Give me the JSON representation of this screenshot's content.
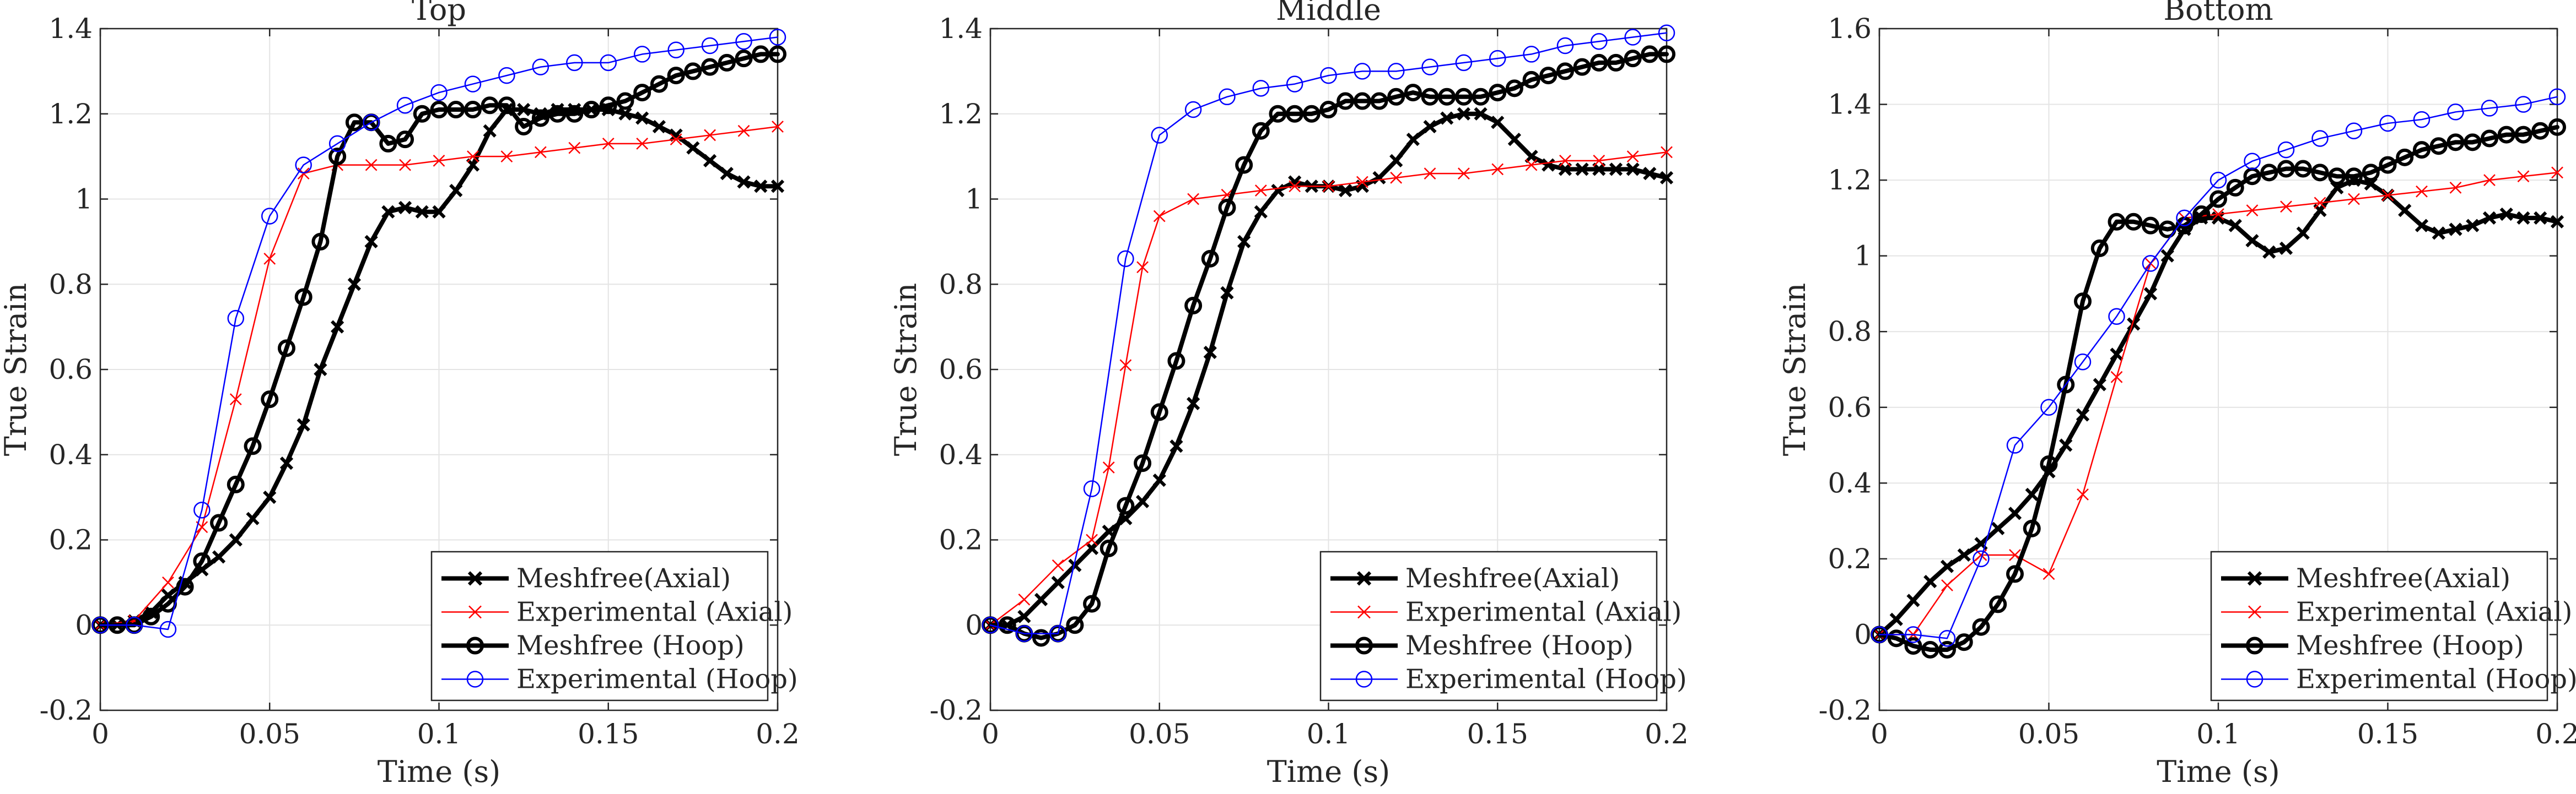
{
  "chart_data": [
    {
      "type": "line",
      "title": "Top",
      "xlabel": "Time (s)",
      "ylabel": "True Strain",
      "xlim": [
        0,
        0.2
      ],
      "ylim": [
        -0.2,
        1.4
      ],
      "xticks": [
        0,
        0.05,
        0.1,
        0.15,
        0.2
      ],
      "xtick_labels": [
        "0",
        "0.05",
        "0.1",
        "0.15",
        "0.2"
      ],
      "yticks": [
        -0.2,
        0,
        0.2,
        0.4,
        0.6,
        0.8,
        1,
        1.2,
        1.4
      ],
      "ytick_labels": [
        "-0.2",
        "0",
        "0.2",
        "0.4",
        "0.6",
        "0.8",
        "1",
        "1.2",
        "1.4"
      ],
      "grid": true,
      "legend_position": "bottom-right",
      "series": [
        {
          "name": "Meshfree(Axial)",
          "color": "#000000",
          "marker": "x",
          "x": [
            0,
            0.005,
            0.01,
            0.015,
            0.02,
            0.025,
            0.03,
            0.035,
            0.04,
            0.045,
            0.05,
            0.055,
            0.06,
            0.065,
            0.07,
            0.075,
            0.08,
            0.085,
            0.09,
            0.095,
            0.1,
            0.105,
            0.11,
            0.115,
            0.12,
            0.125,
            0.13,
            0.135,
            0.14,
            0.145,
            0.15,
            0.155,
            0.16,
            0.165,
            0.17,
            0.175,
            0.18,
            0.185,
            0.19,
            0.195,
            0.2
          ],
          "y": [
            0,
            0,
            0.01,
            0.03,
            0.07,
            0.1,
            0.13,
            0.16,
            0.2,
            0.25,
            0.3,
            0.38,
            0.47,
            0.6,
            0.7,
            0.8,
            0.9,
            0.97,
            0.98,
            0.97,
            0.97,
            1.02,
            1.08,
            1.16,
            1.21,
            1.21,
            1.2,
            1.21,
            1.21,
            1.21,
            1.21,
            1.2,
            1.19,
            1.17,
            1.15,
            1.12,
            1.09,
            1.06,
            1.04,
            1.03,
            1.03
          ]
        },
        {
          "name": "Experimental (Axial)",
          "color": "#ff0000",
          "marker": "x",
          "x": [
            0,
            0.01,
            0.02,
            0.03,
            0.04,
            0.05,
            0.06,
            0.07,
            0.08,
            0.09,
            0.1,
            0.11,
            0.12,
            0.13,
            0.14,
            0.15,
            0.16,
            0.17,
            0.18,
            0.19,
            0.2
          ],
          "y": [
            0,
            0.01,
            0.1,
            0.23,
            0.53,
            0.86,
            1.06,
            1.08,
            1.08,
            1.08,
            1.09,
            1.1,
            1.1,
            1.11,
            1.12,
            1.13,
            1.13,
            1.14,
            1.15,
            1.16,
            1.17
          ]
        },
        {
          "name": "Meshfree (Hoop)",
          "color": "#000000",
          "marker": "o",
          "x": [
            0,
            0.005,
            0.01,
            0.015,
            0.02,
            0.025,
            0.03,
            0.035,
            0.04,
            0.045,
            0.05,
            0.055,
            0.06,
            0.065,
            0.07,
            0.075,
            0.08,
            0.085,
            0.09,
            0.095,
            0.1,
            0.105,
            0.11,
            0.115,
            0.12,
            0.125,
            0.13,
            0.135,
            0.14,
            0.145,
            0.15,
            0.155,
            0.16,
            0.165,
            0.17,
            0.175,
            0.18,
            0.185,
            0.19,
            0.195,
            0.2
          ],
          "y": [
            0,
            0,
            0,
            0.02,
            0.05,
            0.09,
            0.15,
            0.24,
            0.33,
            0.42,
            0.53,
            0.65,
            0.77,
            0.9,
            1.1,
            1.18,
            1.18,
            1.13,
            1.14,
            1.2,
            1.21,
            1.21,
            1.21,
            1.22,
            1.22,
            1.17,
            1.19,
            1.2,
            1.2,
            1.21,
            1.22,
            1.23,
            1.25,
            1.27,
            1.29,
            1.3,
            1.31,
            1.32,
            1.33,
            1.34,
            1.34
          ]
        },
        {
          "name": "Experimental (Hoop)",
          "color": "#0000ff",
          "marker": "o",
          "x": [
            0,
            0.01,
            0.02,
            0.03,
            0.04,
            0.05,
            0.06,
            0.07,
            0.08,
            0.09,
            0.1,
            0.11,
            0.12,
            0.13,
            0.14,
            0.15,
            0.16,
            0.17,
            0.18,
            0.19,
            0.2
          ],
          "y": [
            0,
            0,
            -0.01,
            0.27,
            0.72,
            0.96,
            1.08,
            1.13,
            1.18,
            1.22,
            1.25,
            1.27,
            1.29,
            1.31,
            1.32,
            1.32,
            1.34,
            1.35,
            1.36,
            1.37,
            1.38
          ]
        }
      ]
    },
    {
      "type": "line",
      "title": "Middle",
      "xlabel": "Time (s)",
      "ylabel": "True Strain",
      "xlim": [
        0,
        0.2
      ],
      "ylim": [
        -0.2,
        1.4
      ],
      "xticks": [
        0,
        0.05,
        0.1,
        0.15,
        0.2
      ],
      "xtick_labels": [
        "0",
        "0.05",
        "0.1",
        "0.15",
        "0.2"
      ],
      "yticks": [
        -0.2,
        0,
        0.2,
        0.4,
        0.6,
        0.8,
        1,
        1.2,
        1.4
      ],
      "ytick_labels": [
        "-0.2",
        "0",
        "0.2",
        "0.4",
        "0.6",
        "0.8",
        "1",
        "1.2",
        "1.4"
      ],
      "grid": true,
      "legend_position": "bottom-right",
      "series": [
        {
          "name": "Meshfree(Axial)",
          "color": "#000000",
          "marker": "x",
          "x": [
            0,
            0.005,
            0.01,
            0.015,
            0.02,
            0.025,
            0.03,
            0.035,
            0.04,
            0.045,
            0.05,
            0.055,
            0.06,
            0.065,
            0.07,
            0.075,
            0.08,
            0.085,
            0.09,
            0.095,
            0.1,
            0.105,
            0.11,
            0.115,
            0.12,
            0.125,
            0.13,
            0.135,
            0.14,
            0.145,
            0.15,
            0.155,
            0.16,
            0.165,
            0.17,
            0.175,
            0.18,
            0.185,
            0.19,
            0.195,
            0.2
          ],
          "y": [
            0,
            0,
            0.02,
            0.06,
            0.1,
            0.14,
            0.18,
            0.22,
            0.25,
            0.29,
            0.34,
            0.42,
            0.52,
            0.64,
            0.78,
            0.9,
            0.97,
            1.02,
            1.04,
            1.03,
            1.03,
            1.02,
            1.03,
            1.05,
            1.09,
            1.14,
            1.17,
            1.19,
            1.2,
            1.2,
            1.18,
            1.14,
            1.1,
            1.08,
            1.07,
            1.07,
            1.07,
            1.07,
            1.07,
            1.06,
            1.05
          ]
        },
        {
          "name": "Experimental (Axial)",
          "color": "#ff0000",
          "marker": "x",
          "x": [
            0,
            0.01,
            0.02,
            0.03,
            0.035,
            0.04,
            0.045,
            0.05,
            0.06,
            0.07,
            0.08,
            0.09,
            0.1,
            0.11,
            0.12,
            0.13,
            0.14,
            0.15,
            0.16,
            0.17,
            0.18,
            0.19,
            0.2
          ],
          "y": [
            0,
            0.06,
            0.14,
            0.2,
            0.37,
            0.61,
            0.84,
            0.96,
            1.0,
            1.01,
            1.02,
            1.03,
            1.03,
            1.04,
            1.05,
            1.06,
            1.06,
            1.07,
            1.08,
            1.09,
            1.09,
            1.1,
            1.11
          ]
        },
        {
          "name": "Meshfree (Hoop)",
          "color": "#000000",
          "marker": "o",
          "x": [
            0,
            0.005,
            0.01,
            0.015,
            0.02,
            0.025,
            0.03,
            0.035,
            0.04,
            0.045,
            0.05,
            0.055,
            0.06,
            0.065,
            0.07,
            0.075,
            0.08,
            0.085,
            0.09,
            0.095,
            0.1,
            0.105,
            0.11,
            0.115,
            0.12,
            0.125,
            0.13,
            0.135,
            0.14,
            0.145,
            0.15,
            0.155,
            0.16,
            0.165,
            0.17,
            0.175,
            0.18,
            0.185,
            0.19,
            0.195,
            0.2
          ],
          "y": [
            0,
            0,
            -0.02,
            -0.03,
            -0.02,
            0,
            0.05,
            0.18,
            0.28,
            0.38,
            0.5,
            0.62,
            0.75,
            0.86,
            0.98,
            1.08,
            1.16,
            1.2,
            1.2,
            1.2,
            1.21,
            1.23,
            1.23,
            1.23,
            1.24,
            1.25,
            1.24,
            1.24,
            1.24,
            1.24,
            1.25,
            1.26,
            1.28,
            1.29,
            1.3,
            1.31,
            1.32,
            1.32,
            1.33,
            1.34,
            1.34
          ]
        },
        {
          "name": "Experimental (Hoop)",
          "color": "#0000ff",
          "marker": "o",
          "x": [
            0,
            0.01,
            0.02,
            0.03,
            0.04,
            0.05,
            0.06,
            0.07,
            0.08,
            0.09,
            0.1,
            0.11,
            0.12,
            0.13,
            0.14,
            0.15,
            0.16,
            0.17,
            0.18,
            0.19,
            0.2
          ],
          "y": [
            0,
            -0.02,
            -0.02,
            0.32,
            0.86,
            1.15,
            1.21,
            1.24,
            1.26,
            1.27,
            1.29,
            1.3,
            1.3,
            1.31,
            1.32,
            1.33,
            1.34,
            1.36,
            1.37,
            1.38,
            1.39
          ]
        }
      ]
    },
    {
      "type": "line",
      "title": "Bottom",
      "xlabel": "Time (s)",
      "ylabel": "True Strain",
      "xlim": [
        0,
        0.2
      ],
      "ylim": [
        -0.2,
        1.6
      ],
      "xticks": [
        0,
        0.05,
        0.1,
        0.15,
        0.2
      ],
      "xtick_labels": [
        "0",
        "0.05",
        "0.1",
        "0.15",
        "0.2"
      ],
      "yticks": [
        -0.2,
        0,
        0.2,
        0.4,
        0.6,
        0.8,
        1,
        1.2,
        1.4,
        1.6
      ],
      "ytick_labels": [
        "-0.2",
        "0",
        "0.2",
        "0.4",
        "0.6",
        "0.8",
        "1",
        "1.2",
        "1.4",
        "1.6"
      ],
      "grid": true,
      "legend_position": "bottom-right",
      "series": [
        {
          "name": "Meshfree(Axial)",
          "color": "#000000",
          "marker": "x",
          "x": [
            0,
            0.005,
            0.01,
            0.015,
            0.02,
            0.025,
            0.03,
            0.035,
            0.04,
            0.045,
            0.05,
            0.055,
            0.06,
            0.065,
            0.07,
            0.075,
            0.08,
            0.085,
            0.09,
            0.095,
            0.1,
            0.105,
            0.11,
            0.115,
            0.12,
            0.125,
            0.13,
            0.135,
            0.14,
            0.145,
            0.15,
            0.155,
            0.16,
            0.165,
            0.17,
            0.175,
            0.18,
            0.185,
            0.19,
            0.195,
            0.2
          ],
          "y": [
            0,
            0.04,
            0.09,
            0.14,
            0.18,
            0.21,
            0.24,
            0.28,
            0.32,
            0.37,
            0.43,
            0.5,
            0.58,
            0.66,
            0.74,
            0.82,
            0.9,
            1.0,
            1.07,
            1.1,
            1.1,
            1.08,
            1.04,
            1.01,
            1.02,
            1.06,
            1.12,
            1.18,
            1.2,
            1.19,
            1.16,
            1.12,
            1.08,
            1.06,
            1.07,
            1.08,
            1.1,
            1.11,
            1.1,
            1.1,
            1.09
          ]
        },
        {
          "name": "Experimental (Axial)",
          "color": "#ff0000",
          "marker": "x",
          "x": [
            0,
            0.01,
            0.02,
            0.03,
            0.04,
            0.05,
            0.06,
            0.07,
            0.08,
            0.09,
            0.1,
            0.11,
            0.12,
            0.13,
            0.14,
            0.15,
            0.16,
            0.17,
            0.18,
            0.19,
            0.2
          ],
          "y": [
            0,
            0,
            0.13,
            0.21,
            0.21,
            0.16,
            0.37,
            0.68,
            0.98,
            1.1,
            1.11,
            1.12,
            1.13,
            1.14,
            1.15,
            1.16,
            1.17,
            1.18,
            1.2,
            1.21,
            1.22
          ]
        },
        {
          "name": "Meshfree (Hoop)",
          "color": "#000000",
          "marker": "o",
          "x": [
            0,
            0.005,
            0.01,
            0.015,
            0.02,
            0.025,
            0.03,
            0.035,
            0.04,
            0.045,
            0.05,
            0.055,
            0.06,
            0.065,
            0.07,
            0.075,
            0.08,
            0.085,
            0.09,
            0.095,
            0.1,
            0.105,
            0.11,
            0.115,
            0.12,
            0.125,
            0.13,
            0.135,
            0.14,
            0.145,
            0.15,
            0.155,
            0.16,
            0.165,
            0.17,
            0.175,
            0.18,
            0.185,
            0.19,
            0.195,
            0.2
          ],
          "y": [
            0,
            -0.01,
            -0.03,
            -0.04,
            -0.04,
            -0.02,
            0.02,
            0.08,
            0.16,
            0.28,
            0.45,
            0.66,
            0.88,
            1.02,
            1.09,
            1.09,
            1.08,
            1.07,
            1.08,
            1.11,
            1.15,
            1.18,
            1.21,
            1.22,
            1.23,
            1.23,
            1.22,
            1.21,
            1.21,
            1.22,
            1.24,
            1.26,
            1.28,
            1.29,
            1.3,
            1.3,
            1.31,
            1.32,
            1.32,
            1.33,
            1.34
          ]
        },
        {
          "name": "Experimental (Hoop)",
          "color": "#0000ff",
          "marker": "o",
          "x": [
            0,
            0.01,
            0.02,
            0.03,
            0.04,
            0.05,
            0.06,
            0.07,
            0.08,
            0.09,
            0.1,
            0.11,
            0.12,
            0.13,
            0.14,
            0.15,
            0.16,
            0.17,
            0.18,
            0.19,
            0.2
          ],
          "y": [
            0,
            0,
            -0.01,
            0.2,
            0.5,
            0.6,
            0.72,
            0.84,
            0.98,
            1.1,
            1.2,
            1.25,
            1.28,
            1.31,
            1.33,
            1.35,
            1.36,
            1.38,
            1.39,
            1.4,
            1.42
          ]
        }
      ]
    }
  ]
}
